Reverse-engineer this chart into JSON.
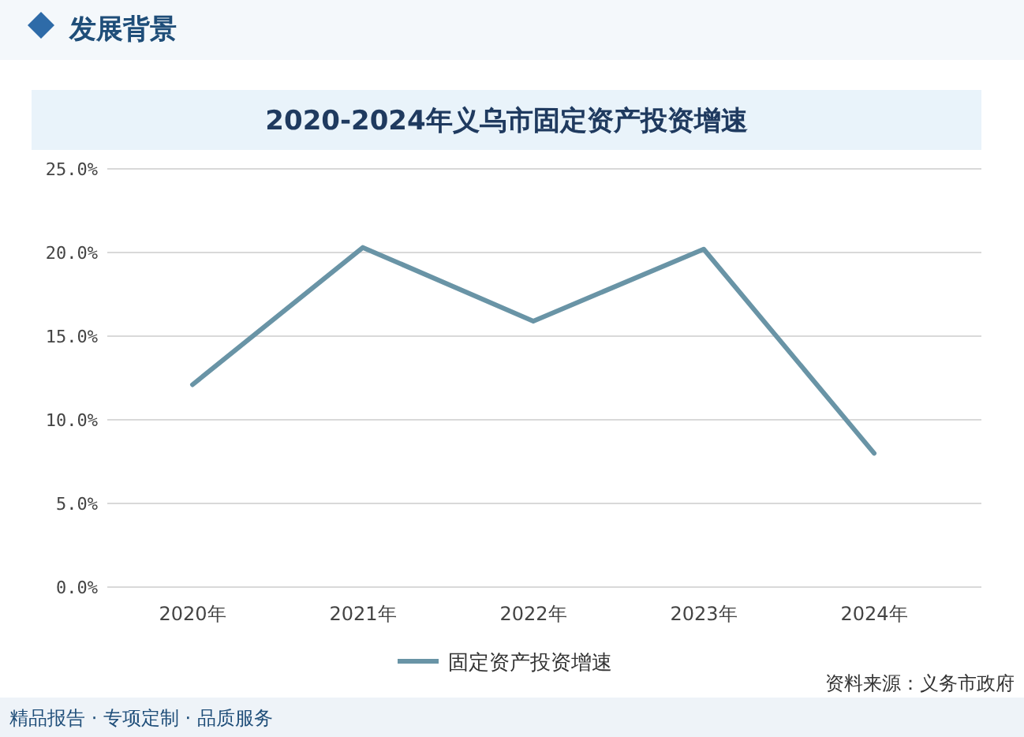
{
  "chart_data": {
    "type": "line",
    "title": "2020-2024年义乌市固定资产投资增速",
    "categories": [
      "2020年",
      "2021年",
      "2022年",
      "2023年",
      "2024年"
    ],
    "series": [
      {
        "name": "固定资产投资增速",
        "color": "#6994a6",
        "values": [
          12.1,
          20.3,
          15.9,
          20.2,
          8.0
        ]
      }
    ],
    "ylim": [
      0,
      25
    ],
    "yticks": [
      {
        "value": 0,
        "label": "0.0%"
      },
      {
        "value": 5,
        "label": "5.0%"
      },
      {
        "value": 10,
        "label": "10.0%"
      },
      {
        "value": 15,
        "label": "15.0%"
      },
      {
        "value": 20,
        "label": "20.0%"
      },
      {
        "value": 25,
        "label": "25.0%"
      }
    ],
    "grid": "y",
    "legend": "bottom",
    "marker": "none",
    "line_style": "solid",
    "annotations": [
      "发展背景",
      "资料来源：义务市政府",
      "精品报告 · 专项定制 · 品质服务"
    ]
  }
}
